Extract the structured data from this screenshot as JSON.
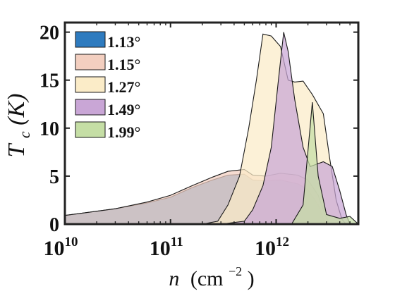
{
  "chart_data": {
    "type": "area",
    "xlabel": "n (cm⁻²)",
    "xlabel_base": "n",
    "xlabel_unit": "(cm",
    "xlabel_exp": "−2",
    "xlabel_close": ")",
    "ylabel": "Tc(K)",
    "ylabel_main": "T",
    "ylabel_sub": "c",
    "ylabel_rest": "(K)",
    "xscale": "log",
    "xlim": [
      10000000000.0,
      6000000000000.0
    ],
    "ylim": [
      0,
      21
    ],
    "grid": false,
    "legend_position": "top-left",
    "x_ticks": [
      {
        "value": 10000000000.0,
        "base": "10",
        "exp": "10"
      },
      {
        "value": 100000000000.0,
        "base": "10",
        "exp": "11"
      },
      {
        "value": 1000000000000.0,
        "base": "10",
        "exp": "12"
      }
    ],
    "y_ticks": [
      {
        "value": 0,
        "label": "0"
      },
      {
        "value": 5,
        "label": "5"
      },
      {
        "value": 10,
        "label": "10"
      },
      {
        "value": 15,
        "label": "15"
      },
      {
        "value": 20,
        "label": "20"
      }
    ],
    "series": [
      {
        "name": "1.13°",
        "color": "#2e7bbf",
        "upper": [
          [
            10000000000.0,
            0.9
          ],
          [
            30000000000.0,
            1.6
          ],
          [
            60000000000.0,
            2.2
          ],
          [
            100000000000.0,
            2.8
          ],
          [
            160000000000.0,
            3.8
          ],
          [
            250000000000.0,
            4.6
          ],
          [
            350000000000.0,
            5.1
          ],
          [
            500000000000.0,
            5.2
          ],
          [
            600000000000.0,
            4.6
          ],
          [
            800000000000.0,
            4.5
          ],
          [
            1100000000000.0,
            4.6
          ],
          [
            1600000000000.0,
            4.2
          ],
          [
            2000000000000.0,
            3.6
          ],
          [
            2500000000000.0,
            2.0
          ],
          [
            2800000000000.0,
            0.5
          ],
          [
            3000000000000.0,
            0
          ]
        ],
        "lower": [
          [
            10000000000.0,
            0
          ],
          [
            30000000000.0,
            0
          ],
          [
            100000000000.0,
            0
          ],
          [
            200000000000.0,
            0
          ],
          [
            3000000000000.0,
            0
          ]
        ]
      },
      {
        "name": "1.15°",
        "color": "#f3cfc0",
        "upper": [
          [
            10000000000.0,
            0.9
          ],
          [
            30000000000.0,
            1.6
          ],
          [
            60000000000.0,
            2.3
          ],
          [
            100000000000.0,
            3.0
          ],
          [
            160000000000.0,
            4.0
          ],
          [
            250000000000.0,
            4.9
          ],
          [
            350000000000.0,
            5.5
          ],
          [
            500000000000.0,
            5.7
          ],
          [
            600000000000.0,
            5.1
          ],
          [
            800000000000.0,
            5.0
          ],
          [
            1100000000000.0,
            5.3
          ],
          [
            1600000000000.0,
            5.1
          ],
          [
            2000000000000.0,
            4.6
          ],
          [
            2500000000000.0,
            3.0
          ],
          [
            2900000000000.0,
            1.0
          ],
          [
            3200000000000.0,
            0
          ]
        ],
        "lower": [
          [
            10000000000.0,
            0
          ],
          [
            3200000000000.0,
            0
          ]
        ]
      },
      {
        "name": "1.27°",
        "color": "#fbecc8",
        "upper": [
          [
            10000000000.0,
            0
          ],
          [
            200000000000.0,
            0
          ],
          [
            280000000000.0,
            0.3
          ],
          [
            350000000000.0,
            2.0
          ],
          [
            450000000000.0,
            5.0
          ],
          [
            550000000000.0,
            10.0
          ],
          [
            650000000000.0,
            15.0
          ],
          [
            750000000000.0,
            19.8
          ],
          [
            900000000000.0,
            19.6
          ],
          [
            1100000000000.0,
            18.5
          ],
          [
            1300000000000.0,
            15.0
          ],
          [
            1500000000000.0,
            14.8
          ],
          [
            1800000000000.0,
            14.9
          ],
          [
            2200000000000.0,
            13.5
          ],
          [
            2800000000000.0,
            11.5
          ],
          [
            3200000000000.0,
            7.0
          ],
          [
            3700000000000.0,
            2.5
          ],
          [
            4200000000000.0,
            0.5
          ],
          [
            4600000000000.0,
            0
          ]
        ],
        "lower": [
          [
            10000000000.0,
            0
          ],
          [
            4600000000000.0,
            0
          ]
        ]
      },
      {
        "name": "1.49°",
        "color": "#c9a6d6",
        "upper": [
          [
            10000000000.0,
            0
          ],
          [
            300000000000.0,
            0
          ],
          [
            500000000000.0,
            0.3
          ],
          [
            600000000000.0,
            1.5
          ],
          [
            750000000000.0,
            4.0
          ],
          [
            900000000000.0,
            8.0
          ],
          [
            1050000000000.0,
            15.0
          ],
          [
            1180000000000.0,
            20.0
          ],
          [
            1300000000000.0,
            18.0
          ],
          [
            1500000000000.0,
            13.0
          ],
          [
            1800000000000.0,
            8.0
          ],
          [
            2100000000000.0,
            6.0
          ],
          [
            2800000000000.0,
            6.5
          ],
          [
            3400000000000.0,
            6.0
          ],
          [
            4000000000000.0,
            3.5
          ],
          [
            4600000000000.0,
            1.0
          ],
          [
            5000000000000.0,
            0
          ]
        ],
        "lower": [
          [
            10000000000.0,
            0
          ],
          [
            5000000000000.0,
            0
          ]
        ]
      },
      {
        "name": "1.99°",
        "color": "#c5dea5",
        "upper": [
          [
            10000000000.0,
            0
          ],
          [
            1400000000000.0,
            0
          ],
          [
            1800000000000.0,
            2.0
          ],
          [
            2200000000000.0,
            12.7
          ],
          [
            2500000000000.0,
            5.0
          ],
          [
            3000000000000.0,
            1.0
          ],
          [
            4000000000000.0,
            0.6
          ],
          [
            5000000000000.0,
            0.8
          ],
          [
            6000000000000.0,
            0
          ]
        ],
        "lower": [
          [
            10000000000.0,
            0
          ],
          [
            6000000000000.0,
            0
          ]
        ]
      }
    ]
  }
}
